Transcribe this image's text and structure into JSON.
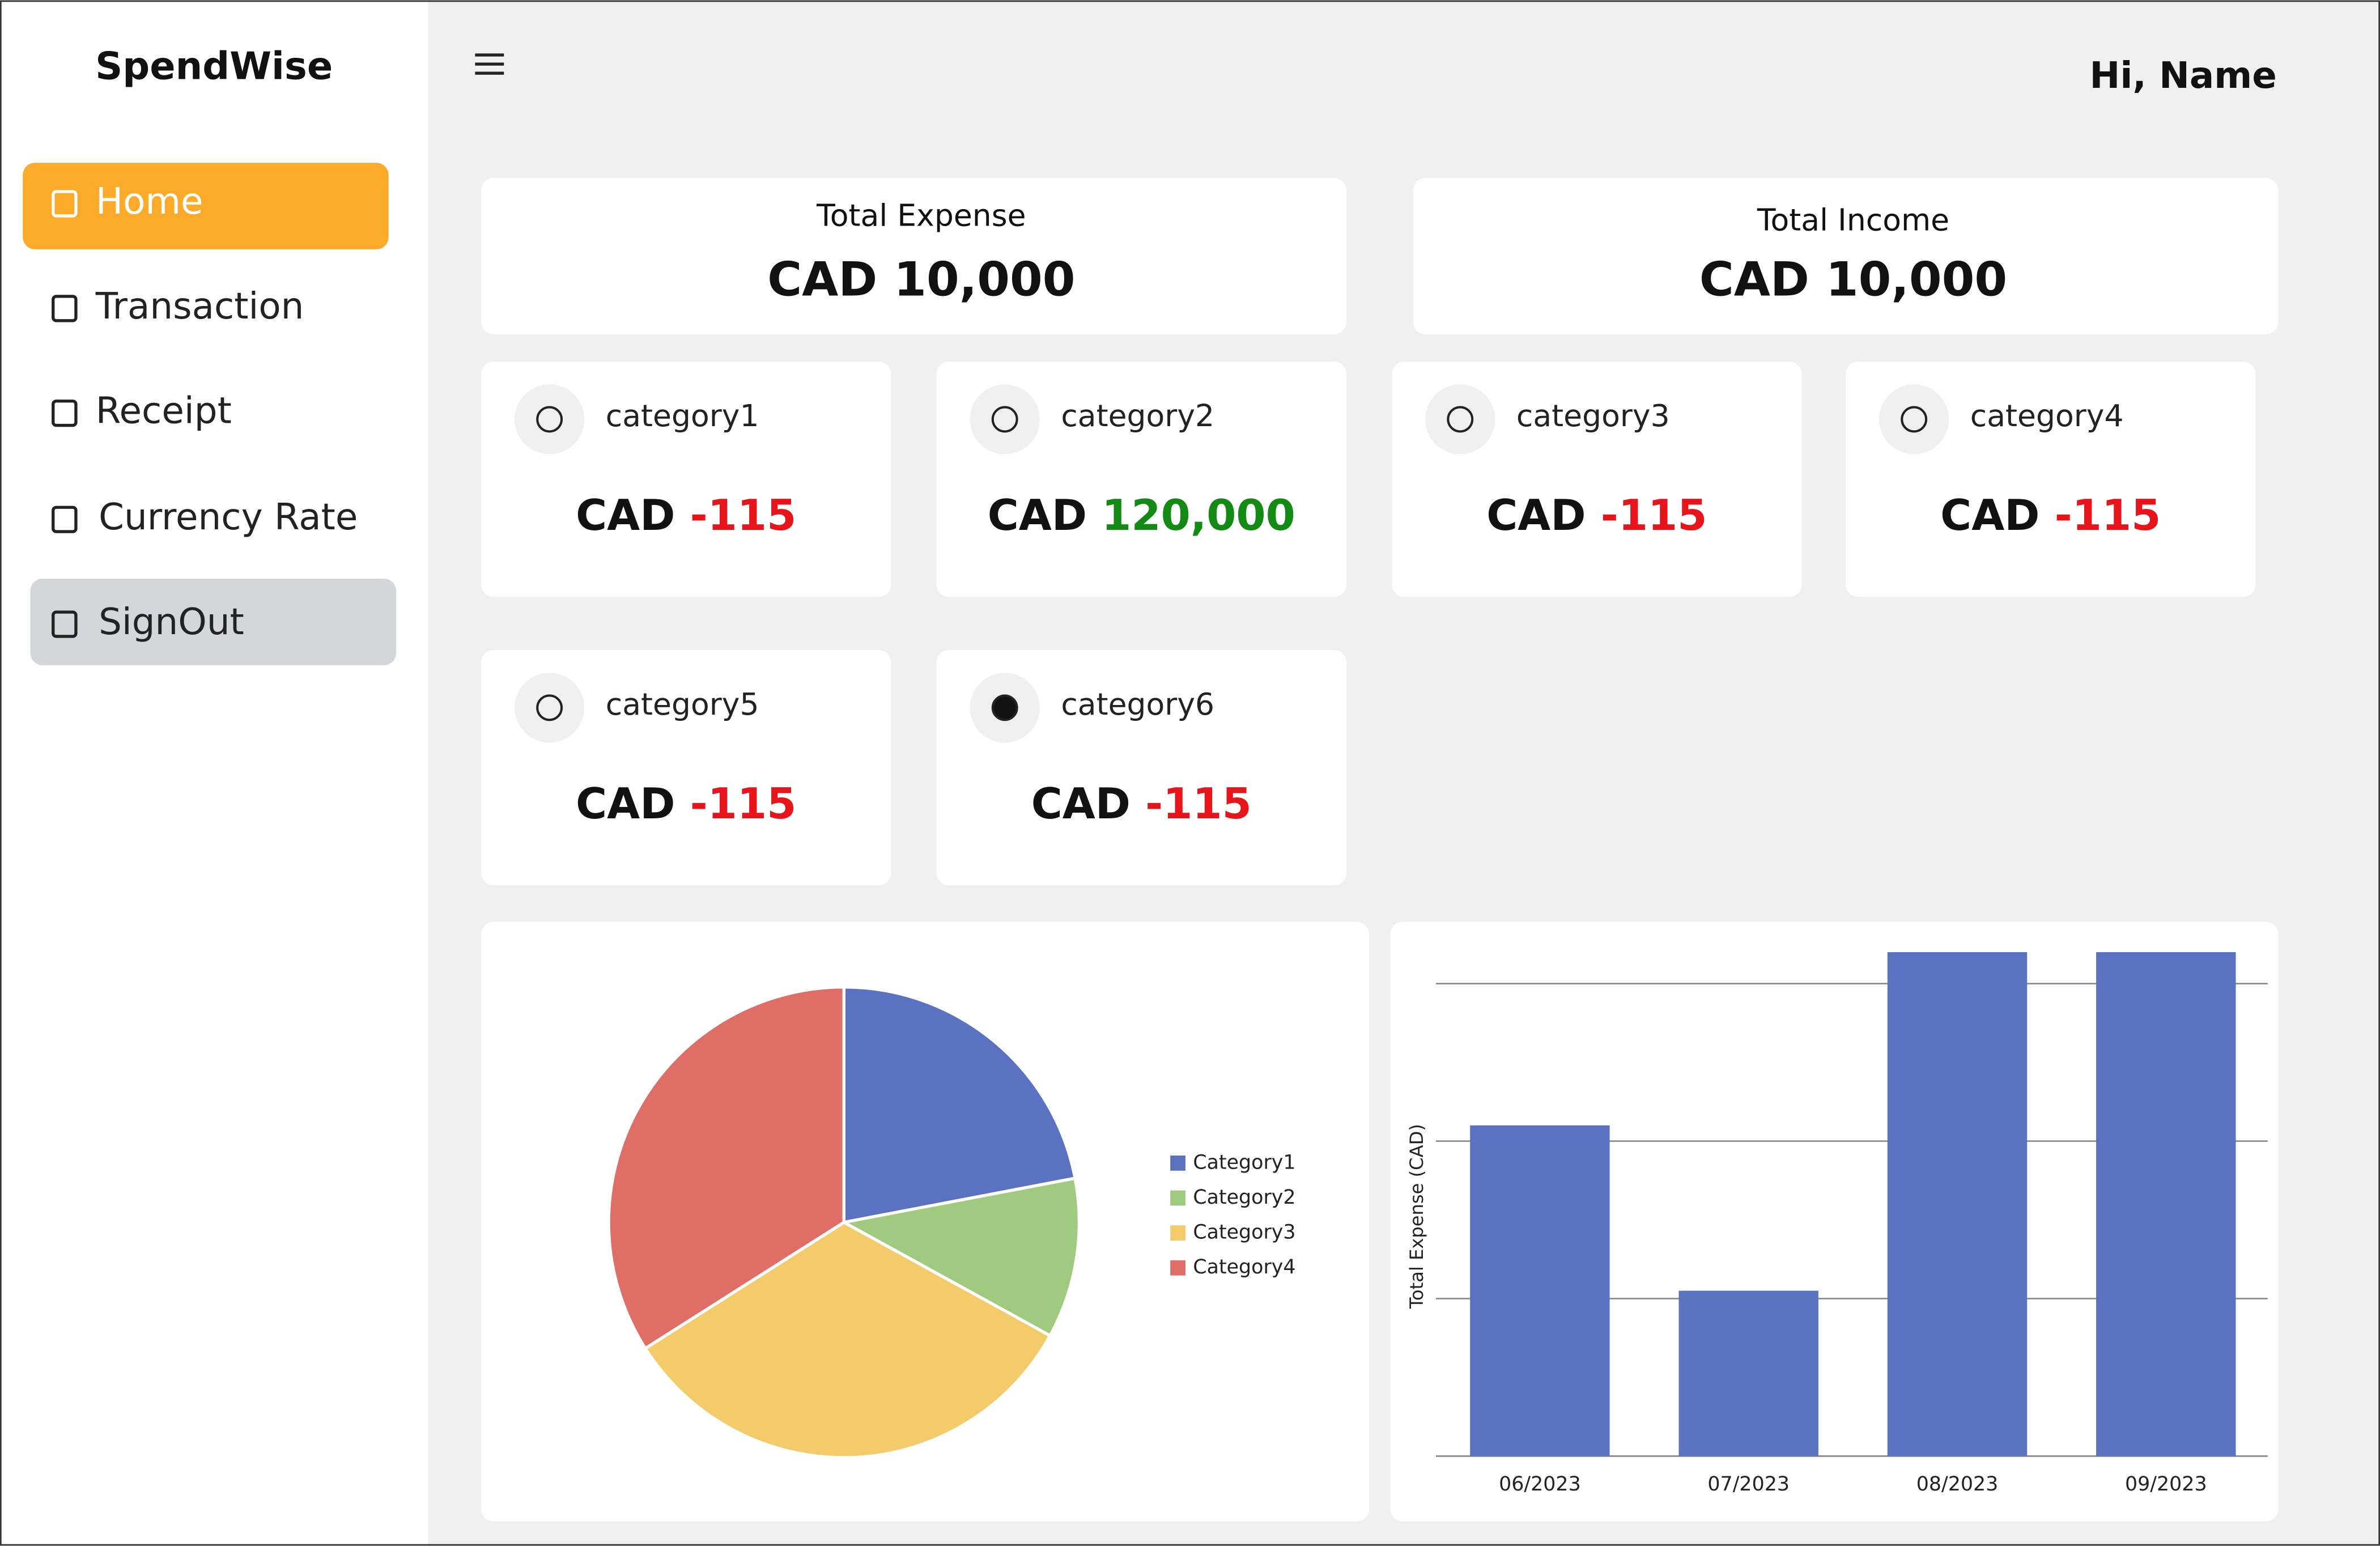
{
  "sidebar": {
    "brand": "SpendWise",
    "nav": [
      "Home",
      "Transaction",
      "Receipt",
      "Currency Rate",
      "SignOut"
    ]
  },
  "header": {
    "greeting": "Hi, Name"
  },
  "summary": [
    {
      "label": "Total Expense",
      "value": "CAD 10,000"
    },
    {
      "label": "Total Income",
      "value": "CAD 10,000"
    }
  ],
  "categories": [
    {
      "name": "category1",
      "currency": "CAD",
      "amount": "-115",
      "amount_color": "#e8141b"
    },
    {
      "name": "category2",
      "currency": "CAD",
      "amount": "120,000",
      "amount_color": "#138a13"
    },
    {
      "name": "category3",
      "currency": "CAD",
      "amount": "-115",
      "amount_color": "#e8141b"
    },
    {
      "name": "category4",
      "currency": "CAD",
      "amount": "-115",
      "amount_color": "#e8141b"
    },
    {
      "name": "category5",
      "currency": "CAD",
      "amount": "-115",
      "amount_color": "#e8141b"
    },
    {
      "name": "category6",
      "currency": "CAD",
      "amount": "-115",
      "amount_color": "#e8141b"
    }
  ],
  "pie_chart": {
    "type": "pie",
    "categories": [
      "Category1",
      "Category2",
      "Category3",
      "Category4"
    ],
    "values": [
      22,
      11,
      33,
      34
    ],
    "colors": [
      "#5b72c0",
      "#a0ca80",
      "#f4cb6b",
      "#df6e66"
    ]
  },
  "bar_chart": {
    "type": "bar",
    "y_label": "Total Expense (CAD)",
    "categories": [
      "06/2023",
      "07/2023",
      "08/2023",
      "09/2023"
    ],
    "values": [
      2.1,
      1.05,
      3.2,
      3.2
    ],
    "color": "#5b72c0",
    "ylim": [
      0,
      3.2
    ],
    "yticks": [
      0,
      1,
      2,
      3
    ],
    "grid": true
  }
}
